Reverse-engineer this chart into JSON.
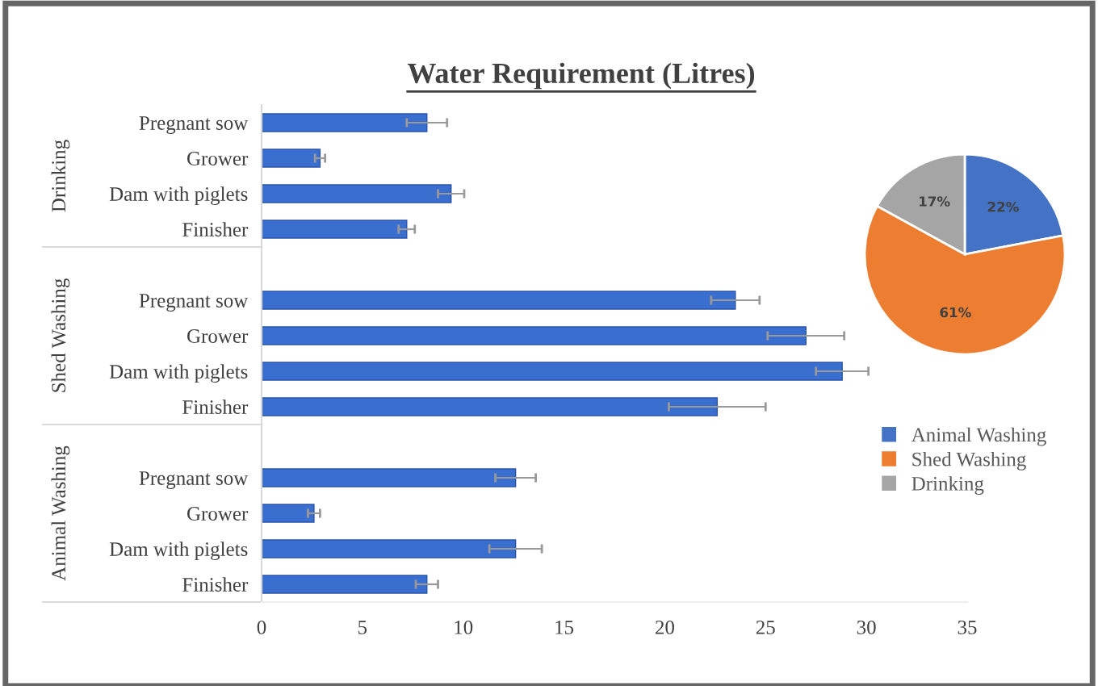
{
  "chart_data": [
    {
      "type": "bar",
      "orientation": "horizontal",
      "title": "Water Requirement (Litres)",
      "categories": [
        "Pregnant sow",
        "Grower",
        "Dam with piglets",
        "Finisher",
        null,
        "Pregnant sow",
        "Grower",
        "Dam with piglets",
        "Finisher",
        null,
        "Pregnant sow",
        "Grower",
        "Dam with piglets",
        "Finisher"
      ],
      "values": [
        8.2,
        2.9,
        9.4,
        7.2,
        null,
        23.5,
        27.0,
        28.8,
        22.6,
        null,
        12.6,
        2.6,
        12.6,
        8.2
      ],
      "errors": [
        1.0,
        0.25,
        0.65,
        0.4,
        null,
        1.2,
        1.9,
        1.3,
        2.4,
        null,
        1.0,
        0.3,
        1.3,
        0.55
      ],
      "color": "#3a6fd0",
      "annotations": [
        "Drinking",
        "Shed Washing",
        "Animal Washing"
      ],
      "xlim": [
        0,
        35
      ],
      "xticks": [
        0,
        5,
        10,
        15,
        20,
        25,
        30,
        35
      ],
      "grid": false
    },
    {
      "type": "pie",
      "categories": [
        "Animal Washing",
        "Shed Washing",
        "Drinking"
      ],
      "values": [
        22,
        61,
        17
      ],
      "colors": [
        "#4472c4",
        "#ed7d31",
        "#a5a5a5"
      ],
      "value_labels": [
        "22%",
        "61%",
        "17%"
      ],
      "legend": "bottom"
    }
  ]
}
